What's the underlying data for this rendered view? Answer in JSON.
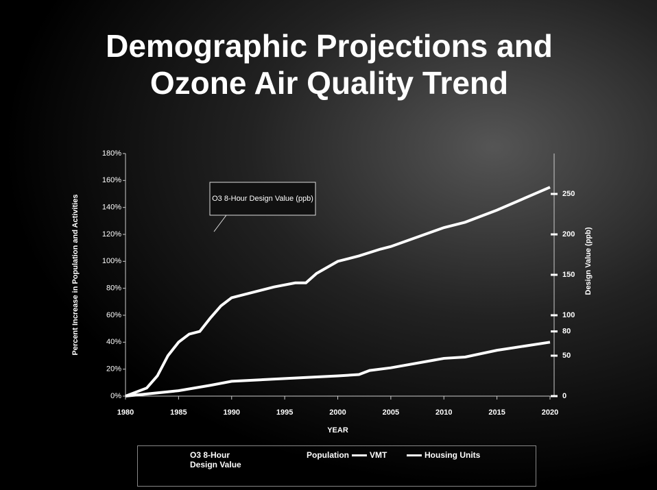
{
  "chart_data": {
    "type": "line",
    "title": "Demographic Projections and Ozone Air Quality Trend",
    "xlabel": "YEAR",
    "ylabel": "Percent Increase in Population and Activities",
    "y2label": "Design Value (ppb)",
    "annotation": "O3 8-Hour Design Value (ppb)",
    "xlim": [
      1980,
      2020
    ],
    "xticks": [
      1980,
      1985,
      1990,
      1995,
      2000,
      2005,
      2010,
      2015,
      2020
    ],
    "ylim": [
      0,
      180
    ],
    "yticks": [
      {
        "value": 0,
        "label": "0%"
      },
      {
        "value": 20,
        "label": "20%"
      },
      {
        "value": 40,
        "label": "40%"
      },
      {
        "value": 60,
        "label": "60%"
      },
      {
        "value": 80,
        "label": "80%"
      },
      {
        "value": 100,
        "label": "100%"
      },
      {
        "value": 120,
        "label": "120%"
      },
      {
        "value": 140,
        "label": "140%"
      },
      {
        "value": 160,
        "label": "160%"
      },
      {
        "value": 180,
        "label": "180%"
      }
    ],
    "y2lim": [
      0,
      300
    ],
    "y2ticks": [
      0,
      50,
      80,
      100,
      150,
      200,
      250
    ],
    "series": [
      {
        "name": "O3 8-Hour Design Value",
        "color": "#000000",
        "x": [],
        "values": []
      },
      {
        "name": "Population",
        "color": "#000000",
        "x": [],
        "values": []
      },
      {
        "name": "VMT",
        "color": "#ffffff",
        "x": [
          1980,
          1981,
          1982,
          1983,
          1984,
          1985,
          1986,
          1987,
          1988,
          1989,
          1990,
          1992,
          1994,
          1996,
          1997,
          1998,
          2000,
          2002,
          2004,
          2005,
          2010,
          2012,
          2015,
          2020
        ],
        "values": [
          0,
          3,
          6,
          15,
          30,
          40,
          46,
          48,
          58,
          67,
          73,
          77,
          81,
          84,
          84,
          91,
          100,
          104,
          109,
          111,
          125,
          129,
          138,
          155
        ]
      },
      {
        "name": "Housing Units",
        "color": "#ffffff",
        "x": [
          1980,
          1985,
          1988,
          1990,
          1995,
          2000,
          2002,
          2003,
          2005,
          2010,
          2012,
          2015,
          2020
        ],
        "values": [
          0,
          4,
          8,
          11,
          13,
          15,
          16,
          19,
          21,
          28,
          29,
          34,
          40
        ]
      }
    ]
  }
}
